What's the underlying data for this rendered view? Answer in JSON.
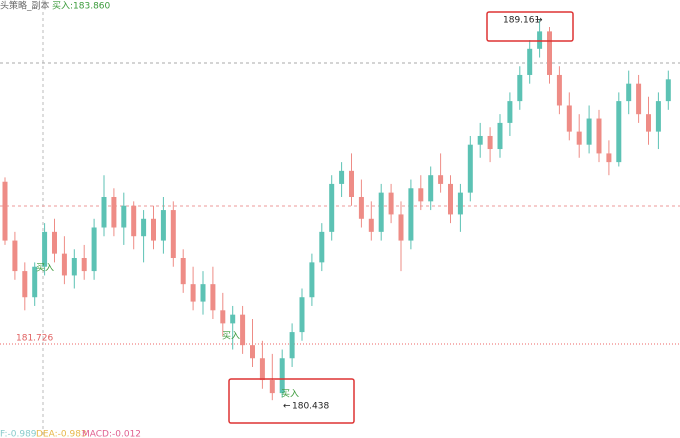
{
  "chart_data": {
    "type": "candlestick",
    "strategy_label": "头策略_副本",
    "buy_label": "买入:183.860",
    "indicators": [
      "F:-0.989",
      "DEA:-0.983",
      "MACD:-0.012"
    ],
    "annotations": [
      "买入",
      "买入",
      "买入"
    ],
    "high_marker": 189.161,
    "low_marker": 180.438,
    "level_label": 181.726,
    "up_color": "#5cc2b4",
    "down_color": "#ee8c86",
    "ylim": [
      179.57,
      189.62
    ],
    "open": [
      185.45,
      184.1,
      183.4,
      182.8,
      183.5,
      184.3,
      183.8,
      183.3,
      183.7,
      183.4,
      184.4,
      185.1,
      184.4,
      184.9,
      184.2,
      184.6,
      184.1,
      184.8,
      183.7,
      183.1,
      182.7,
      183.1,
      182.5,
      182.2,
      182.4,
      181.7,
      181.4,
      180.9,
      180.6,
      181.4,
      182.0,
      182.8,
      183.6,
      184.3,
      185.4,
      185.7,
      185.1,
      184.6,
      184.3,
      185.2,
      184.7,
      184.1,
      185.3,
      185.0,
      185.6,
      185.4,
      184.7,
      185.2,
      186.3,
      186.5,
      186.2,
      186.8,
      187.3,
      187.9,
      188.5,
      188.9,
      187.9,
      187.2,
      186.6,
      186.3,
      186.9,
      186.1,
      185.9,
      187.3,
      187.7,
      187.0,
      186.6,
      187.3
    ],
    "high": [
      185.55,
      184.3,
      183.6,
      183.6,
      184.5,
      184.6,
      184.2,
      183.9,
      184.0,
      184.6,
      185.6,
      185.3,
      185.2,
      185.0,
      184.8,
      184.9,
      185.1,
      185.0,
      183.9,
      183.5,
      183.4,
      183.5,
      182.9,
      182.6,
      182.6,
      182.3,
      181.8,
      181.5,
      181.6,
      182.2,
      183.0,
      183.8,
      184.5,
      185.6,
      185.9,
      186.1,
      185.5,
      185.0,
      185.4,
      185.4,
      185.0,
      185.5,
      185.6,
      185.8,
      186.1,
      185.6,
      185.4,
      186.5,
      186.8,
      186.7,
      187.0,
      187.5,
      188.1,
      188.7,
      189.161,
      189.0,
      188.1,
      187.5,
      187.0,
      187.2,
      187.1,
      186.4,
      187.5,
      188.0,
      187.9,
      187.4,
      187.5,
      188.0
    ],
    "low": [
      184.0,
      183.2,
      182.5,
      182.6,
      183.3,
      183.6,
      183.1,
      183.0,
      183.2,
      183.2,
      184.2,
      184.2,
      184.0,
      183.9,
      183.6,
      183.9,
      183.8,
      183.5,
      182.9,
      182.5,
      182.4,
      182.3,
      181.9,
      181.6,
      181.5,
      181.2,
      180.7,
      180.438,
      180.5,
      181.2,
      181.8,
      182.6,
      183.4,
      184.1,
      185.1,
      184.9,
      184.4,
      184.1,
      184.1,
      184.5,
      183.4,
      183.9,
      184.8,
      184.8,
      185.2,
      184.5,
      184.3,
      185.0,
      186.0,
      185.9,
      186.0,
      186.5,
      187.1,
      187.7,
      188.3,
      187.7,
      187.0,
      186.4,
      186.0,
      186.1,
      185.9,
      185.6,
      185.8,
      187.0,
      186.8,
      186.3,
      186.2,
      187.1
    ],
    "close": [
      184.1,
      183.4,
      182.8,
      183.5,
      184.3,
      183.8,
      183.3,
      183.7,
      183.4,
      184.4,
      185.1,
      184.4,
      184.9,
      184.2,
      184.6,
      184.1,
      184.8,
      183.7,
      183.1,
      182.7,
      183.1,
      182.5,
      182.2,
      182.4,
      181.7,
      181.4,
      180.9,
      180.6,
      181.4,
      182.0,
      182.8,
      183.6,
      184.3,
      185.4,
      185.7,
      185.1,
      184.6,
      184.3,
      185.2,
      184.7,
      184.1,
      185.3,
      185.0,
      185.6,
      185.4,
      184.7,
      185.2,
      186.3,
      186.5,
      186.2,
      186.8,
      187.3,
      187.9,
      188.5,
      188.9,
      187.9,
      187.2,
      186.6,
      186.3,
      186.9,
      186.1,
      185.9,
      187.3,
      187.7,
      187.0,
      186.6,
      187.3,
      187.8
    ]
  }
}
